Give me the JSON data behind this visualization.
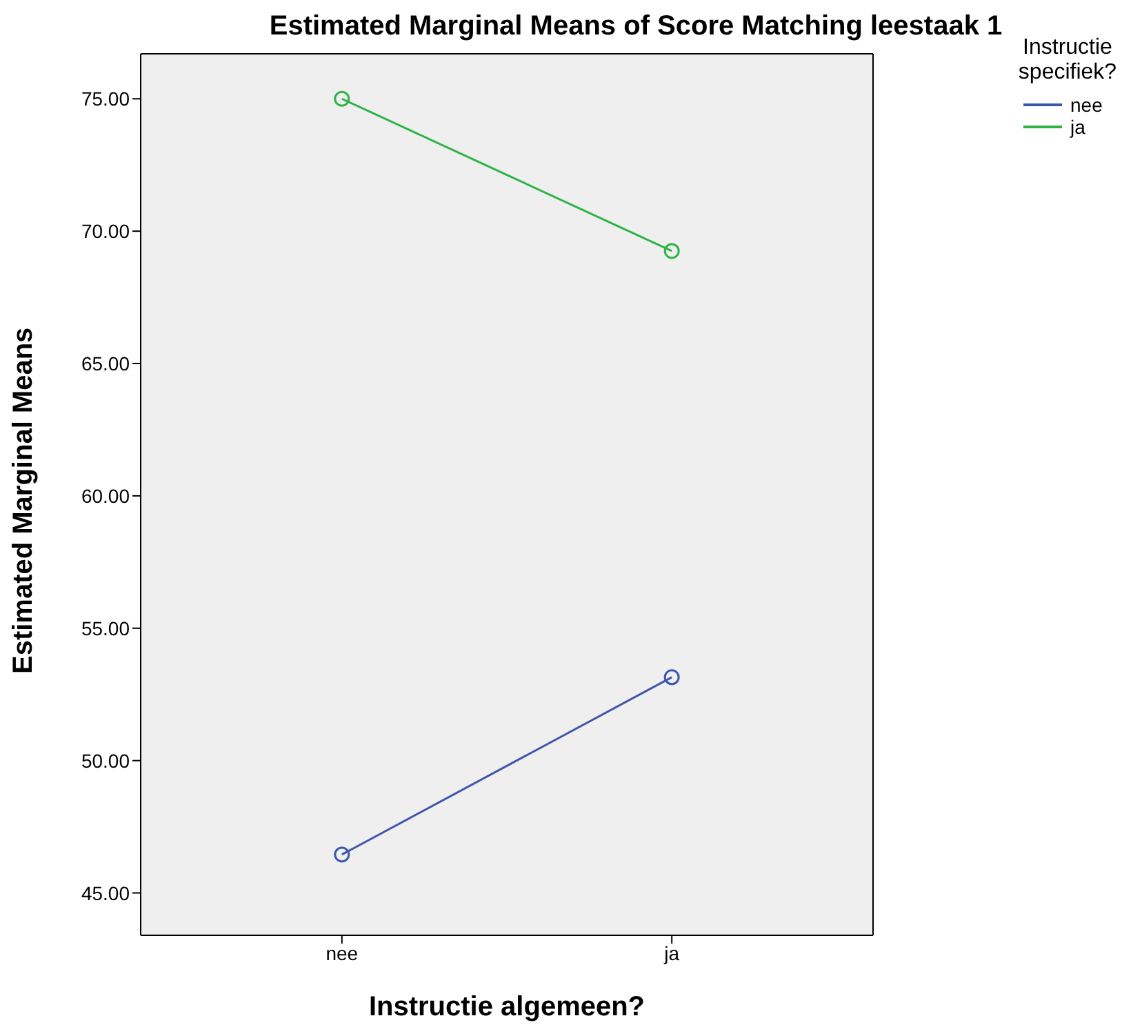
{
  "chart_data": {
    "type": "line",
    "title": "Estimated Marginal Means of Score Matching leestaak 1",
    "xlabel": "Instructie algemeen?",
    "ylabel": "Estimated Marginal Means",
    "legend_title": "Instructie specifiek?",
    "categories": [
      "nee",
      "ja"
    ],
    "series": [
      {
        "name": "nee",
        "color": "#3e56ab",
        "values": [
          46.45,
          53.15
        ]
      },
      {
        "name": "ja",
        "color": "#2db444",
        "values": [
          75.0,
          69.25
        ]
      }
    ],
    "ylim": [
      43.4,
      76.7
    ],
    "yticks": [
      {
        "value": 45,
        "label": "45.00"
      },
      {
        "value": 50,
        "label": "50.00"
      },
      {
        "value": 55,
        "label": "55.00"
      },
      {
        "value": 60,
        "label": "60.00"
      },
      {
        "value": 65,
        "label": "65.00"
      },
      {
        "value": 70,
        "label": "70.00"
      },
      {
        "value": 75,
        "label": "75.00"
      }
    ],
    "grid": false,
    "legend": "top right",
    "marker": "circle",
    "line_style": "solid"
  }
}
